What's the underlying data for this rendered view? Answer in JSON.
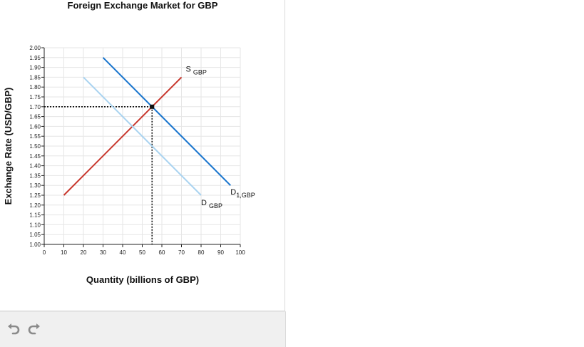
{
  "chart_data": {
    "type": "line",
    "title": "Foreign Exchange Market for GBP",
    "xlabel": "Quantity (billions of GBP)",
    "ylabel": "Exchange Rate (USD/GBP)",
    "xlim": [
      0,
      100
    ],
    "ylim": [
      1.0,
      2.0
    ],
    "x_ticks": [
      "0",
      "10",
      "20",
      "30",
      "40",
      "50",
      "60",
      "70",
      "80",
      "90",
      "100"
    ],
    "x_tick_values": [
      0,
      10,
      20,
      30,
      40,
      50,
      60,
      70,
      80,
      90,
      100
    ],
    "y_ticks": [
      "1.00",
      "1.05",
      "1.10",
      "1.15",
      "1.20",
      "1.25",
      "1.30",
      "1.35",
      "1.40",
      "1.45",
      "1.50",
      "1.55",
      "1.60",
      "1.65",
      "1.70",
      "1.75",
      "1.80",
      "1.85",
      "1.90",
      "1.95",
      "2.00"
    ],
    "y_tick_values": [
      1.0,
      1.05,
      1.1,
      1.15,
      1.2,
      1.25,
      1.3,
      1.35,
      1.4,
      1.45,
      1.5,
      1.55,
      1.6,
      1.65,
      1.7,
      1.75,
      1.8,
      1.85,
      1.9,
      1.95,
      2.0
    ],
    "grid": true,
    "series": [
      {
        "id": "supply",
        "label_main": "S",
        "label_sub": "GBP",
        "color": "#c8372d",
        "points": [
          [
            10,
            1.25
          ],
          [
            70,
            1.85
          ]
        ]
      },
      {
        "id": "demand-old",
        "label_main": "D",
        "label_sub": "GBP",
        "color": "#a9d3f0",
        "points": [
          [
            20,
            1.85
          ],
          [
            80,
            1.25
          ]
        ]
      },
      {
        "id": "demand-new",
        "label_main": "D",
        "label_sub": "1,GBP",
        "color": "#1874cd",
        "points": [
          [
            30,
            1.95
          ],
          [
            95,
            1.3
          ]
        ]
      }
    ],
    "equilibrium": {
      "x": 55,
      "y": 1.7,
      "color": "#111111"
    }
  },
  "toolbar": {
    "undo_icon": "undo-icon",
    "redo_icon": "redo-icon"
  }
}
